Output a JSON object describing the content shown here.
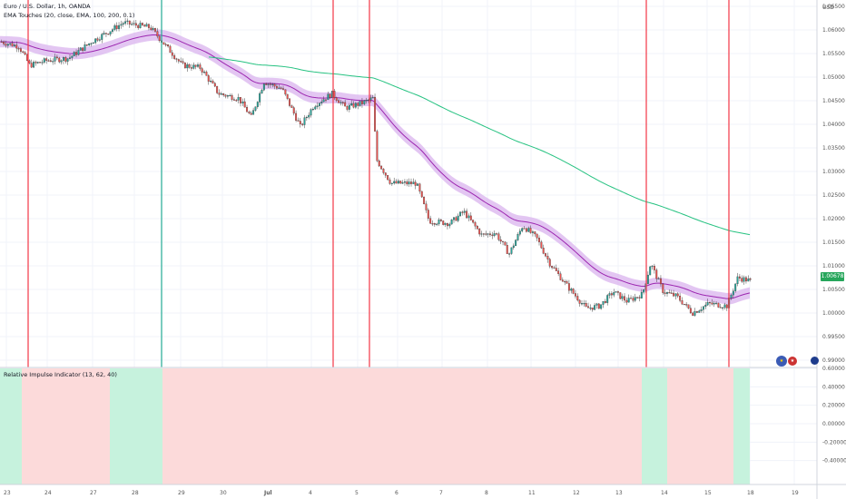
{
  "header": {
    "symbol_line": "Euro / U.S. Dollar, 1h, OANDA",
    "indicator_line": "EMA Touches (20, close, EMA, 100, 200, 0.1)"
  },
  "currency_label": "USD",
  "current_price": "1.00678",
  "price_axis": [
    "1.06500",
    "1.06000",
    "1.05500",
    "1.05000",
    "1.04500",
    "1.04000",
    "1.03500",
    "1.03000",
    "1.02500",
    "1.02000",
    "1.01500",
    "1.01000",
    "1.00500",
    "1.00000",
    "0.99500",
    "0.99000"
  ],
  "sub_panel": {
    "title": "Relative Impulse Indicator (13, 62, 40)",
    "axis": [
      "0.60000",
      "0.40000",
      "0.20000",
      "0.00000",
      "-0.20000",
      "-0.40000"
    ]
  },
  "time_axis": [
    "23",
    "24",
    "27",
    "28",
    "29",
    "30",
    "Jul",
    "4",
    "5",
    "6",
    "7",
    "8",
    "11",
    "12",
    "13",
    "14",
    "15",
    "18",
    "19"
  ],
  "markers": {
    "red_lines": [
      "4:00 Jun 23",
      "11:00 Jul 4",
      "13:00 Jul 5",
      "22:00 Jul 13",
      "15:00 Jul 15"
    ],
    "green_lines": [
      "Jun 28"
    ]
  },
  "colors": {
    "bull": "#26a69a",
    "bear": "#ef5350",
    "ema_band": "#d9b3ee",
    "ema_mid": "#9c27b0",
    "ema_slow": "#26c281",
    "red_line": "#f23645",
    "green_line": "#22ab94",
    "pink_bg": "#fcdada",
    "mint_bg": "#c6f2dd"
  },
  "icons": [
    "eu-flag-icon",
    "us-flag-icon",
    "event-dot-icon"
  ]
}
